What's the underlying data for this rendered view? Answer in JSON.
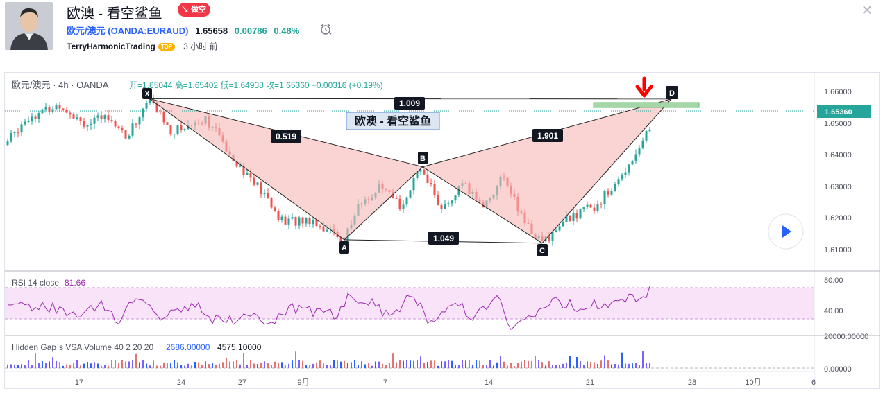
{
  "idea": {
    "title": "欧澳 - 看空鲨鱼",
    "direction_badge": "做空",
    "symbol": "欧元/澳元",
    "symbol_code": "(OANDA:EURAUD)",
    "price": "1.65658",
    "change": "0.00786",
    "change_pct": "0.48%",
    "author": "TerryHarmonicTrading",
    "author_badge": "TOP",
    "published": "3 小时 前"
  },
  "chart": {
    "legend": "欧元/澳元 · 4h · OANDA",
    "ohlc": "开=1.65044  高=1.65402  低=1.64938  收=1.65360  +0.00316 (+0.19%)",
    "pattern_title": "欧澳 - 看空鲨鱼",
    "last_price_label": "1.65360",
    "rsi_label": "RSI 14 close",
    "rsi_value": "81.66",
    "rsi_ticks": [
      "80.00",
      "40.00"
    ],
    "volume_label": "Hidden Gap`s VSA Volume 40 2 20 20",
    "volume_value_1": "2686.00000",
    "volume_value_2": "4575.10000",
    "volume_ticks": [
      "20000.00000",
      "0.00000"
    ],
    "price_ticks": [
      "1.66000",
      "1.65000",
      "1.64000",
      "1.63000",
      "1.62000",
      "1.61000"
    ],
    "time_ticks": [
      "17",
      "24",
      "27",
      "9月",
      "7",
      "14",
      "21",
      "28",
      "10月",
      "6"
    ],
    "points": {
      "X": "X",
      "A": "A",
      "B": "B",
      "C": "C",
      "D": "D"
    },
    "ratios": {
      "xd": "1.009",
      "xb": "0.519",
      "bd": "1.901",
      "ac": "1.049"
    },
    "colors": {
      "pattern_fill": "#f7b5b5",
      "up": "#26a69a",
      "down": "#ef5350",
      "rsi": "#9c27b0",
      "arrow": "#ff0000"
    }
  },
  "chart_data": {
    "type": "harmonic-pattern",
    "pattern": [
      {
        "label": "X",
        "price": 1.6558
      },
      {
        "label": "A",
        "price": 1.6138
      },
      {
        "label": "B",
        "price": 1.6355
      },
      {
        "label": "C",
        "price": 1.6128
      },
      {
        "label": "D",
        "price": 1.6557
      }
    ],
    "ylim": [
      1.6045,
      1.6635
    ],
    "rsi_last": 81.66
  }
}
